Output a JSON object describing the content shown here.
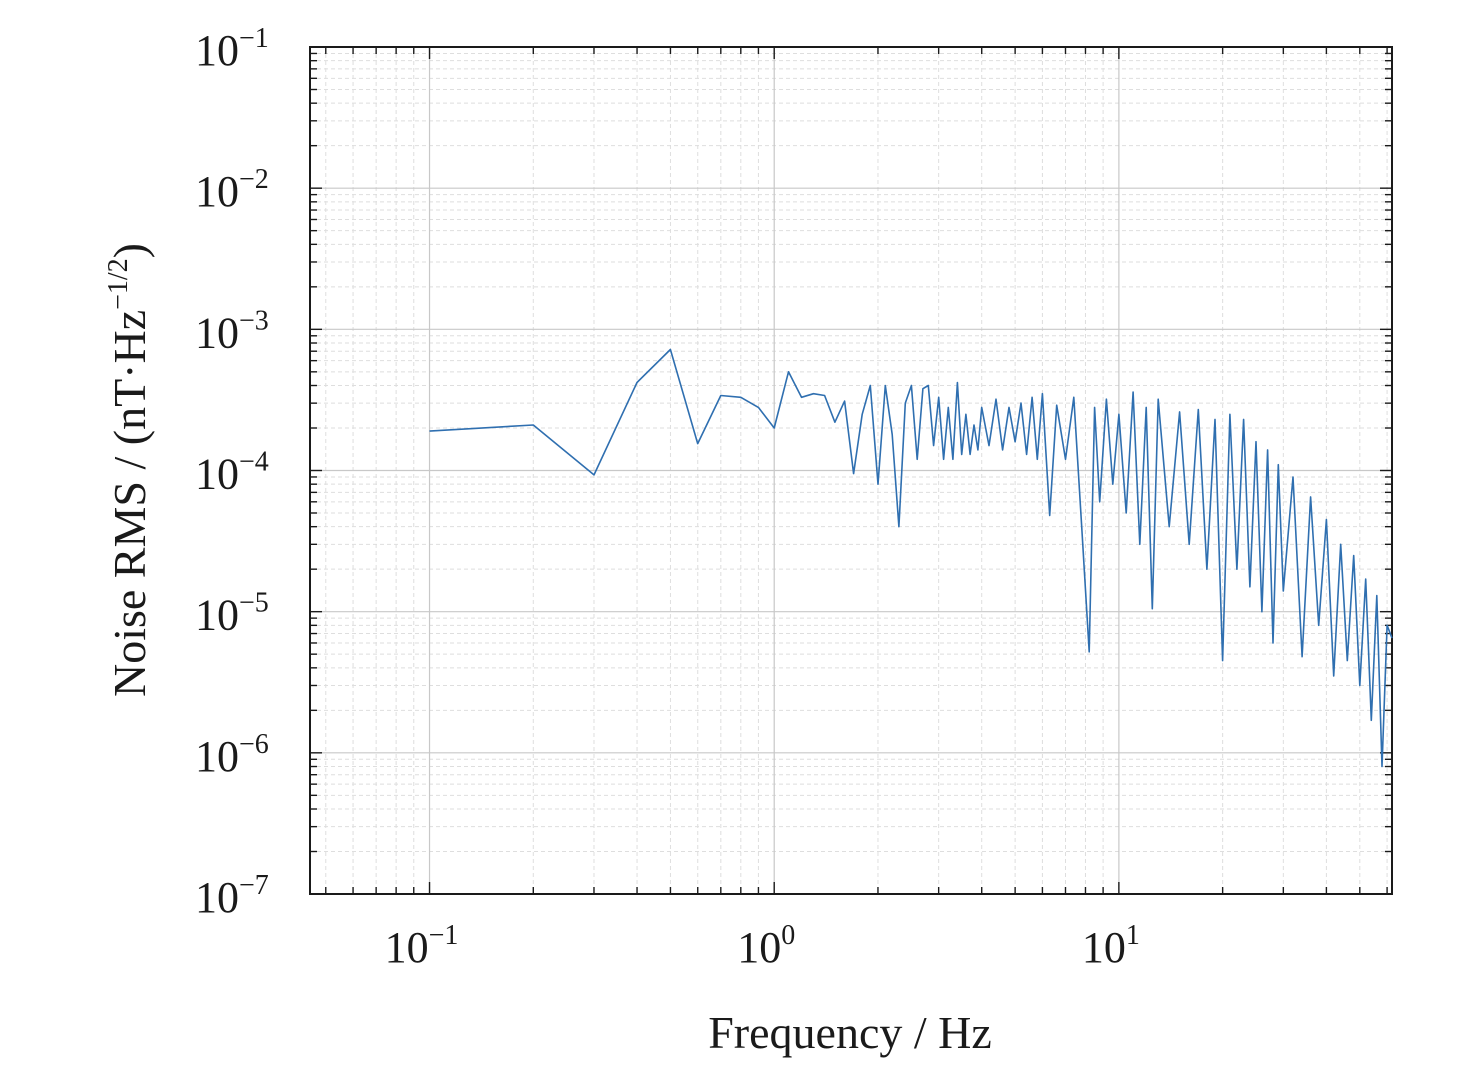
{
  "chart_data": {
    "type": "line",
    "title": "",
    "xlabel": "Frequency / Hz",
    "ylabel_main": "Noise RMS / (nT·Hz",
    "ylabel_exp": "−1/2",
    "ylabel_close": ")",
    "x_scale": "log",
    "y_scale": "log",
    "xlim": [
      0.045,
      62
    ],
    "ylim": [
      1e-07,
      0.1
    ],
    "grid": true,
    "x_ticks": [
      {
        "value": 0.1,
        "base": "10",
        "exp": "−1"
      },
      {
        "value": 1,
        "base": "10",
        "exp": "0"
      },
      {
        "value": 10,
        "base": "10",
        "exp": "1"
      }
    ],
    "y_ticks": [
      {
        "value": 0.1,
        "base": "10",
        "exp": "−1"
      },
      {
        "value": 0.01,
        "base": "10",
        "exp": "−2"
      },
      {
        "value": 0.001,
        "base": "10",
        "exp": "−3"
      },
      {
        "value": 0.0001,
        "base": "10",
        "exp": "−4"
      },
      {
        "value": 1e-05,
        "base": "10",
        "exp": "−5"
      },
      {
        "value": 1e-06,
        "base": "10",
        "exp": "−6"
      },
      {
        "value": 1e-07,
        "base": "10",
        "exp": "−7"
      }
    ],
    "series": [
      {
        "color": "#2f6fb0",
        "x": [
          0.1,
          0.2,
          0.3,
          0.4,
          0.5,
          0.6,
          0.7,
          0.8,
          0.9,
          1.0,
          1.1,
          1.2,
          1.3,
          1.4,
          1.5,
          1.6,
          1.7,
          1.8,
          1.9,
          2.0,
          2.1,
          2.2,
          2.3,
          2.4,
          2.5,
          2.6,
          2.7,
          2.8,
          2.9,
          3.0,
          3.1,
          3.2,
          3.3,
          3.4,
          3.5,
          3.6,
          3.7,
          3.8,
          3.9,
          4.0,
          4.2,
          4.4,
          4.6,
          4.8,
          5.0,
          5.2,
          5.4,
          5.6,
          5.8,
          6.0,
          6.3,
          6.6,
          7.0,
          7.4,
          7.8,
          8.2,
          8.5,
          8.8,
          9.2,
          9.6,
          10,
          10.5,
          11,
          11.5,
          12,
          12.5,
          13,
          14,
          15,
          16,
          17,
          18,
          19,
          20,
          21,
          22,
          23,
          24,
          25,
          26,
          27,
          28,
          29,
          30,
          32,
          34,
          36,
          38,
          40,
          42,
          44,
          46,
          48,
          50,
          52,
          54,
          56,
          58,
          60,
          62
        ],
        "y": [
          0.00019,
          0.00021,
          9.3e-05,
          0.00042,
          0.00072,
          0.000155,
          0.00034,
          0.00033,
          0.00028,
          0.0002,
          0.0005,
          0.00033,
          0.00035,
          0.00034,
          0.00022,
          0.00031,
          9.5e-05,
          0.00025,
          0.0004,
          8e-05,
          0.0004,
          0.00018,
          4e-05,
          0.0003,
          0.0004,
          0.00012,
          0.00038,
          0.0004,
          0.00015,
          0.00033,
          0.00012,
          0.00028,
          0.00012,
          0.00042,
          0.00013,
          0.00025,
          0.00013,
          0.00021,
          0.00014,
          0.00028,
          0.00015,
          0.00032,
          0.00014,
          0.00028,
          0.00016,
          0.0003,
          0.00013,
          0.00033,
          0.00012,
          0.00035,
          4.8e-05,
          0.00029,
          0.00012,
          0.00033,
          4e-05,
          5.2e-06,
          0.00028,
          6e-05,
          0.00032,
          8e-05,
          0.00025,
          5e-05,
          0.00036,
          3e-05,
          0.00028,
          1.05e-05,
          0.00032,
          4e-05,
          0.00026,
          3e-05,
          0.00027,
          2e-05,
          0.00023,
          4.5e-06,
          0.00025,
          2e-05,
          0.00023,
          1.5e-05,
          0.00016,
          1e-05,
          0.00014,
          6e-06,
          0.00011,
          1.4e-05,
          9e-05,
          4.8e-06,
          6.5e-05,
          8e-06,
          4.5e-05,
          3.5e-06,
          3e-05,
          4.5e-06,
          2.5e-05,
          3e-06,
          1.7e-05,
          1.7e-06,
          1.3e-05,
          8e-07,
          8e-06,
          6.5e-06
        ]
      }
    ]
  }
}
